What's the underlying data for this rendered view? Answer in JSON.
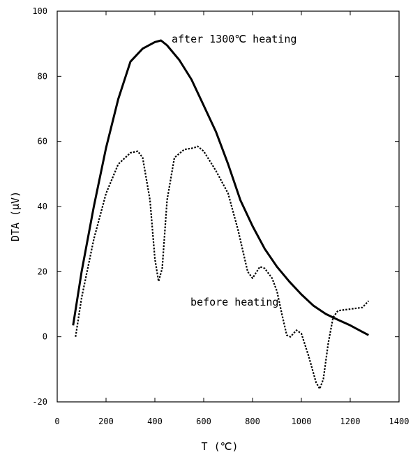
{
  "chart_data": {
    "type": "line",
    "title": "",
    "xlabel": "T (℃)",
    "ylabel": "DTA (μV)",
    "xlim": [
      0,
      1400
    ],
    "ylim": [
      -20,
      100
    ],
    "x_ticks": [
      "0",
      "200",
      "400",
      "600",
      "800",
      "1000",
      "1200",
      "1400"
    ],
    "y_ticks": [
      "-20",
      "0",
      "20",
      "40",
      "60",
      "80",
      "100"
    ],
    "grid": false,
    "legend": "none",
    "annotations": [
      {
        "text": "after 1300℃ heating",
        "series": "after 1300℃ heating"
      },
      {
        "text": "before heating",
        "series": "before heating"
      }
    ],
    "series": [
      {
        "name": "after 1300℃ heating",
        "style": "solid",
        "color": "#000000",
        "x": [
          65,
          100,
          150,
          200,
          250,
          300,
          350,
          400,
          425,
          450,
          500,
          550,
          600,
          650,
          700,
          750,
          800,
          850,
          900,
          950,
          1000,
          1050,
          1100,
          1150,
          1200,
          1250,
          1275
        ],
        "y": [
          3.5,
          20,
          40,
          58,
          73,
          84.5,
          88.5,
          90.5,
          91,
          89.5,
          85,
          79,
          71,
          63,
          53,
          42,
          34,
          27,
          21.5,
          17,
          13,
          9.5,
          7,
          5.2,
          3.5,
          1.5,
          0.5
        ]
      },
      {
        "name": "before heating",
        "style": "dotted",
        "color": "#000000",
        "x": [
          75,
          100,
          150,
          200,
          250,
          300,
          330,
          350,
          380,
          400,
          415,
          430,
          450,
          480,
          520,
          560,
          575,
          600,
          650,
          700,
          740,
          780,
          800,
          830,
          850,
          880,
          900,
          920,
          940,
          955,
          980,
          1000,
          1030,
          1060,
          1075,
          1090,
          1110,
          1130,
          1150,
          1200,
          1250,
          1275
        ],
        "y": [
          0,
          12,
          30,
          44,
          53,
          56.5,
          57,
          55,
          42,
          24,
          17,
          21,
          42,
          55,
          57.5,
          58,
          58.5,
          57,
          51,
          44,
          33,
          20,
          18,
          21.5,
          21,
          18,
          14,
          7,
          0.5,
          0,
          2,
          1,
          -6,
          -14,
          -16,
          -13,
          -2,
          6,
          8,
          8.5,
          9,
          11
        ]
      }
    ]
  }
}
